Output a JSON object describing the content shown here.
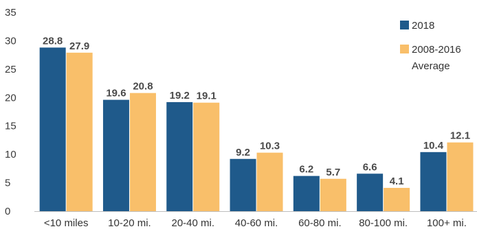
{
  "chart_data": {
    "type": "bar",
    "title": "",
    "xlabel": "",
    "ylabel": "",
    "ylim": [
      0,
      35
    ],
    "yticks": [
      0,
      5,
      10,
      15,
      20,
      25,
      30,
      35
    ],
    "grid": false,
    "legend_position": "top-right",
    "categories": [
      "<10 miles",
      "10-20 mi.",
      "20-40 mi.",
      "40-60 mi.",
      "60-80 mi.",
      "80-100 mi.",
      "100+ mi."
    ],
    "series": [
      {
        "name": "2018",
        "color": "#1f5a8b",
        "values": [
          28.8,
          19.6,
          19.2,
          9.2,
          6.2,
          6.6,
          10.4
        ]
      },
      {
        "name": "2008-2016 Average",
        "name_lines": [
          "2008-2016",
          "Average"
        ],
        "color": "#f9bf6a",
        "values": [
          27.9,
          20.8,
          19.1,
          10.3,
          5.7,
          4.1,
          12.1
        ]
      }
    ]
  }
}
